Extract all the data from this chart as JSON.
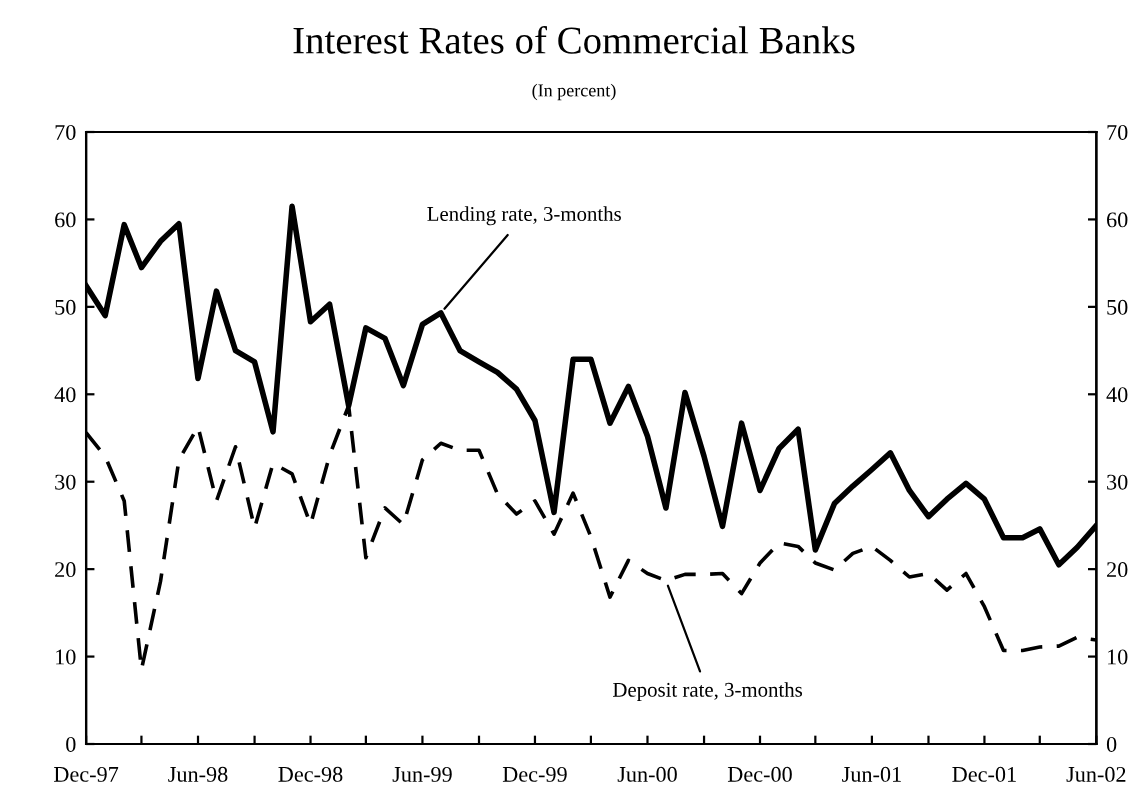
{
  "chart_data": {
    "type": "line",
    "title": "Interest Rates of Commercial Banks",
    "subtitle": "(In percent)",
    "x": [
      "1997-12",
      "1998-01",
      "1998-02",
      "1998-03",
      "1998-04",
      "1998-05",
      "1998-06",
      "1998-07",
      "1998-08",
      "1998-09",
      "1998-10",
      "1998-11",
      "1998-12",
      "1999-01",
      "1999-02",
      "1999-03",
      "1999-04",
      "1999-05",
      "1999-06",
      "1999-07",
      "1999-08",
      "1999-09",
      "1999-10",
      "1999-11",
      "1999-12",
      "2000-01",
      "2000-02",
      "2000-03",
      "2000-04",
      "2000-05",
      "2000-06",
      "2000-07",
      "2000-08",
      "2000-09",
      "2000-10",
      "2000-11",
      "2000-12",
      "2001-01",
      "2001-02",
      "2001-03",
      "2001-04",
      "2001-05",
      "2001-06",
      "2001-07",
      "2001-08",
      "2001-09",
      "2001-10",
      "2001-11",
      "2001-12",
      "2002-01",
      "2002-02",
      "2002-03",
      "2002-04",
      "2002-05",
      "2002-06"
    ],
    "series": [
      {
        "color": "#000000",
        "line_style": "solid",
        "values": [
          52.4,
          49,
          59.4,
          54.5,
          57.5,
          59.5,
          41.8,
          51.8,
          45,
          43.7,
          35.7,
          61.5,
          48.3,
          50.3,
          38.7,
          47.6,
          46.4,
          41,
          48,
          49.3,
          45,
          43.7,
          42.5,
          40.6,
          37,
          26.5,
          44,
          44,
          36.7,
          40.9,
          35.2,
          27,
          40.2,
          32.9,
          24.9,
          36.7,
          29,
          33.8,
          36,
          22.2,
          27.5,
          29.5,
          31.4,
          33.3,
          29,
          26,
          28,
          29.8,
          28,
          23.6,
          23.6,
          24.6,
          20.5,
          22.5,
          25
        ]
      },
      {
        "color": "#000000",
        "line_style": "dashed",
        "values": [
          35.6,
          32.9,
          27.8,
          8.5,
          18.6,
          32.5,
          36.3,
          27.8,
          34,
          24.7,
          32.1,
          30.9,
          25.1,
          33,
          38.7,
          21.3,
          27,
          25.1,
          32.5,
          34.4,
          33.6,
          33.6,
          28.6,
          26.3,
          27.8,
          24,
          28.7,
          23.7,
          16.8,
          21,
          19.5,
          18.7,
          19.4,
          19.4,
          19.5,
          17.2,
          20.7,
          23,
          22.6,
          20.7,
          19.9,
          21.8,
          22.6,
          21,
          19.1,
          19.5,
          17.6,
          19.5,
          15.7,
          10.7,
          10.7,
          11.1,
          11.2,
          12.2,
          11.9
        ]
      }
    ],
    "xlim": [
      "1997-12",
      "2002-06"
    ],
    "xticks": [
      {
        "value": "1997-12",
        "label": "Dec-97"
      },
      {
        "value": "1998-03",
        "label": null
      },
      {
        "value": "1998-06",
        "label": "Jun-98"
      },
      {
        "value": "1998-09",
        "label": null
      },
      {
        "value": "1998-12",
        "label": "Dec-98"
      },
      {
        "value": "1999-03",
        "label": null
      },
      {
        "value": "1999-06",
        "label": "Jun-99"
      },
      {
        "value": "1999-09",
        "label": null
      },
      {
        "value": "1999-12",
        "label": "Dec-99"
      },
      {
        "value": "2000-03",
        "label": null
      },
      {
        "value": "2000-06",
        "label": "Jun-00"
      },
      {
        "value": "2000-09",
        "label": null
      },
      {
        "value": "2000-12",
        "label": "Dec-00"
      },
      {
        "value": "2001-03",
        "label": null
      },
      {
        "value": "2001-06",
        "label": "Jun-01"
      },
      {
        "value": "2001-09",
        "label": null
      },
      {
        "value": "2001-12",
        "label": "Dec-01"
      },
      {
        "value": "2002-03",
        "label": null
      },
      {
        "value": "2002-06",
        "label": "Jun-02"
      }
    ],
    "ylim": [
      0,
      70
    ],
    "yticks": [
      0,
      10,
      20,
      30,
      40,
      50,
      60,
      70
    ],
    "y2lim": [
      0,
      70
    ],
    "y2ticks": [
      0,
      10,
      20,
      30,
      40,
      50,
      60,
      70
    ],
    "grid": false,
    "legend": false,
    "marker": "none",
    "annotations": [
      {
        "text": "Lending rate, 3-months",
        "x": "1999-07",
        "y": 49.3
      },
      {
        "text": "Deposit rate, 3-months",
        "x": "2000-07",
        "y": 18.7
      }
    ]
  }
}
